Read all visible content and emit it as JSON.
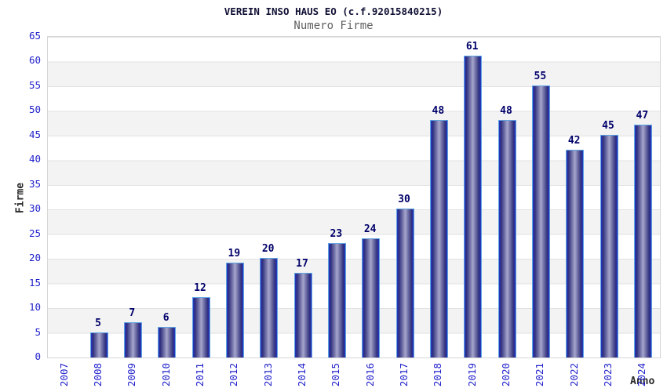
{
  "chart_data": {
    "type": "bar",
    "title": "VEREIN INSO HAUS EO (c.f.92015840215)",
    "subtitle": "Numero Firme",
    "xlabel": "Anno",
    "ylabel": "Firme",
    "categories": [
      "2007",
      "2008",
      "2009",
      "2010",
      "2011",
      "2012",
      "2013",
      "2014",
      "2015",
      "2016",
      "2017",
      "2018",
      "2019",
      "2020",
      "2021",
      "2022",
      "2023",
      "2024"
    ],
    "values": [
      0,
      5,
      7,
      6,
      12,
      19,
      20,
      17,
      23,
      24,
      30,
      48,
      61,
      48,
      55,
      42,
      45,
      47
    ],
    "ylim": [
      0,
      65
    ],
    "ytick_step": 5,
    "legend": "none",
    "grid": "horizontal, alternating white/grey bands every 5 units",
    "bar_labels_shown": true,
    "colors": {
      "tick_label": "#2222cc",
      "bar_value_label": "#00006a",
      "bar_edge_dark": "#2535c4",
      "bar_body_dark": "#30307d",
      "bar_body_light": "#a6a6cd",
      "bar_border_light_blue": "#5fa5e2",
      "band_grey": "#f3f3f3",
      "title_color": "#101035",
      "subtitle_color": "#606060"
    }
  }
}
